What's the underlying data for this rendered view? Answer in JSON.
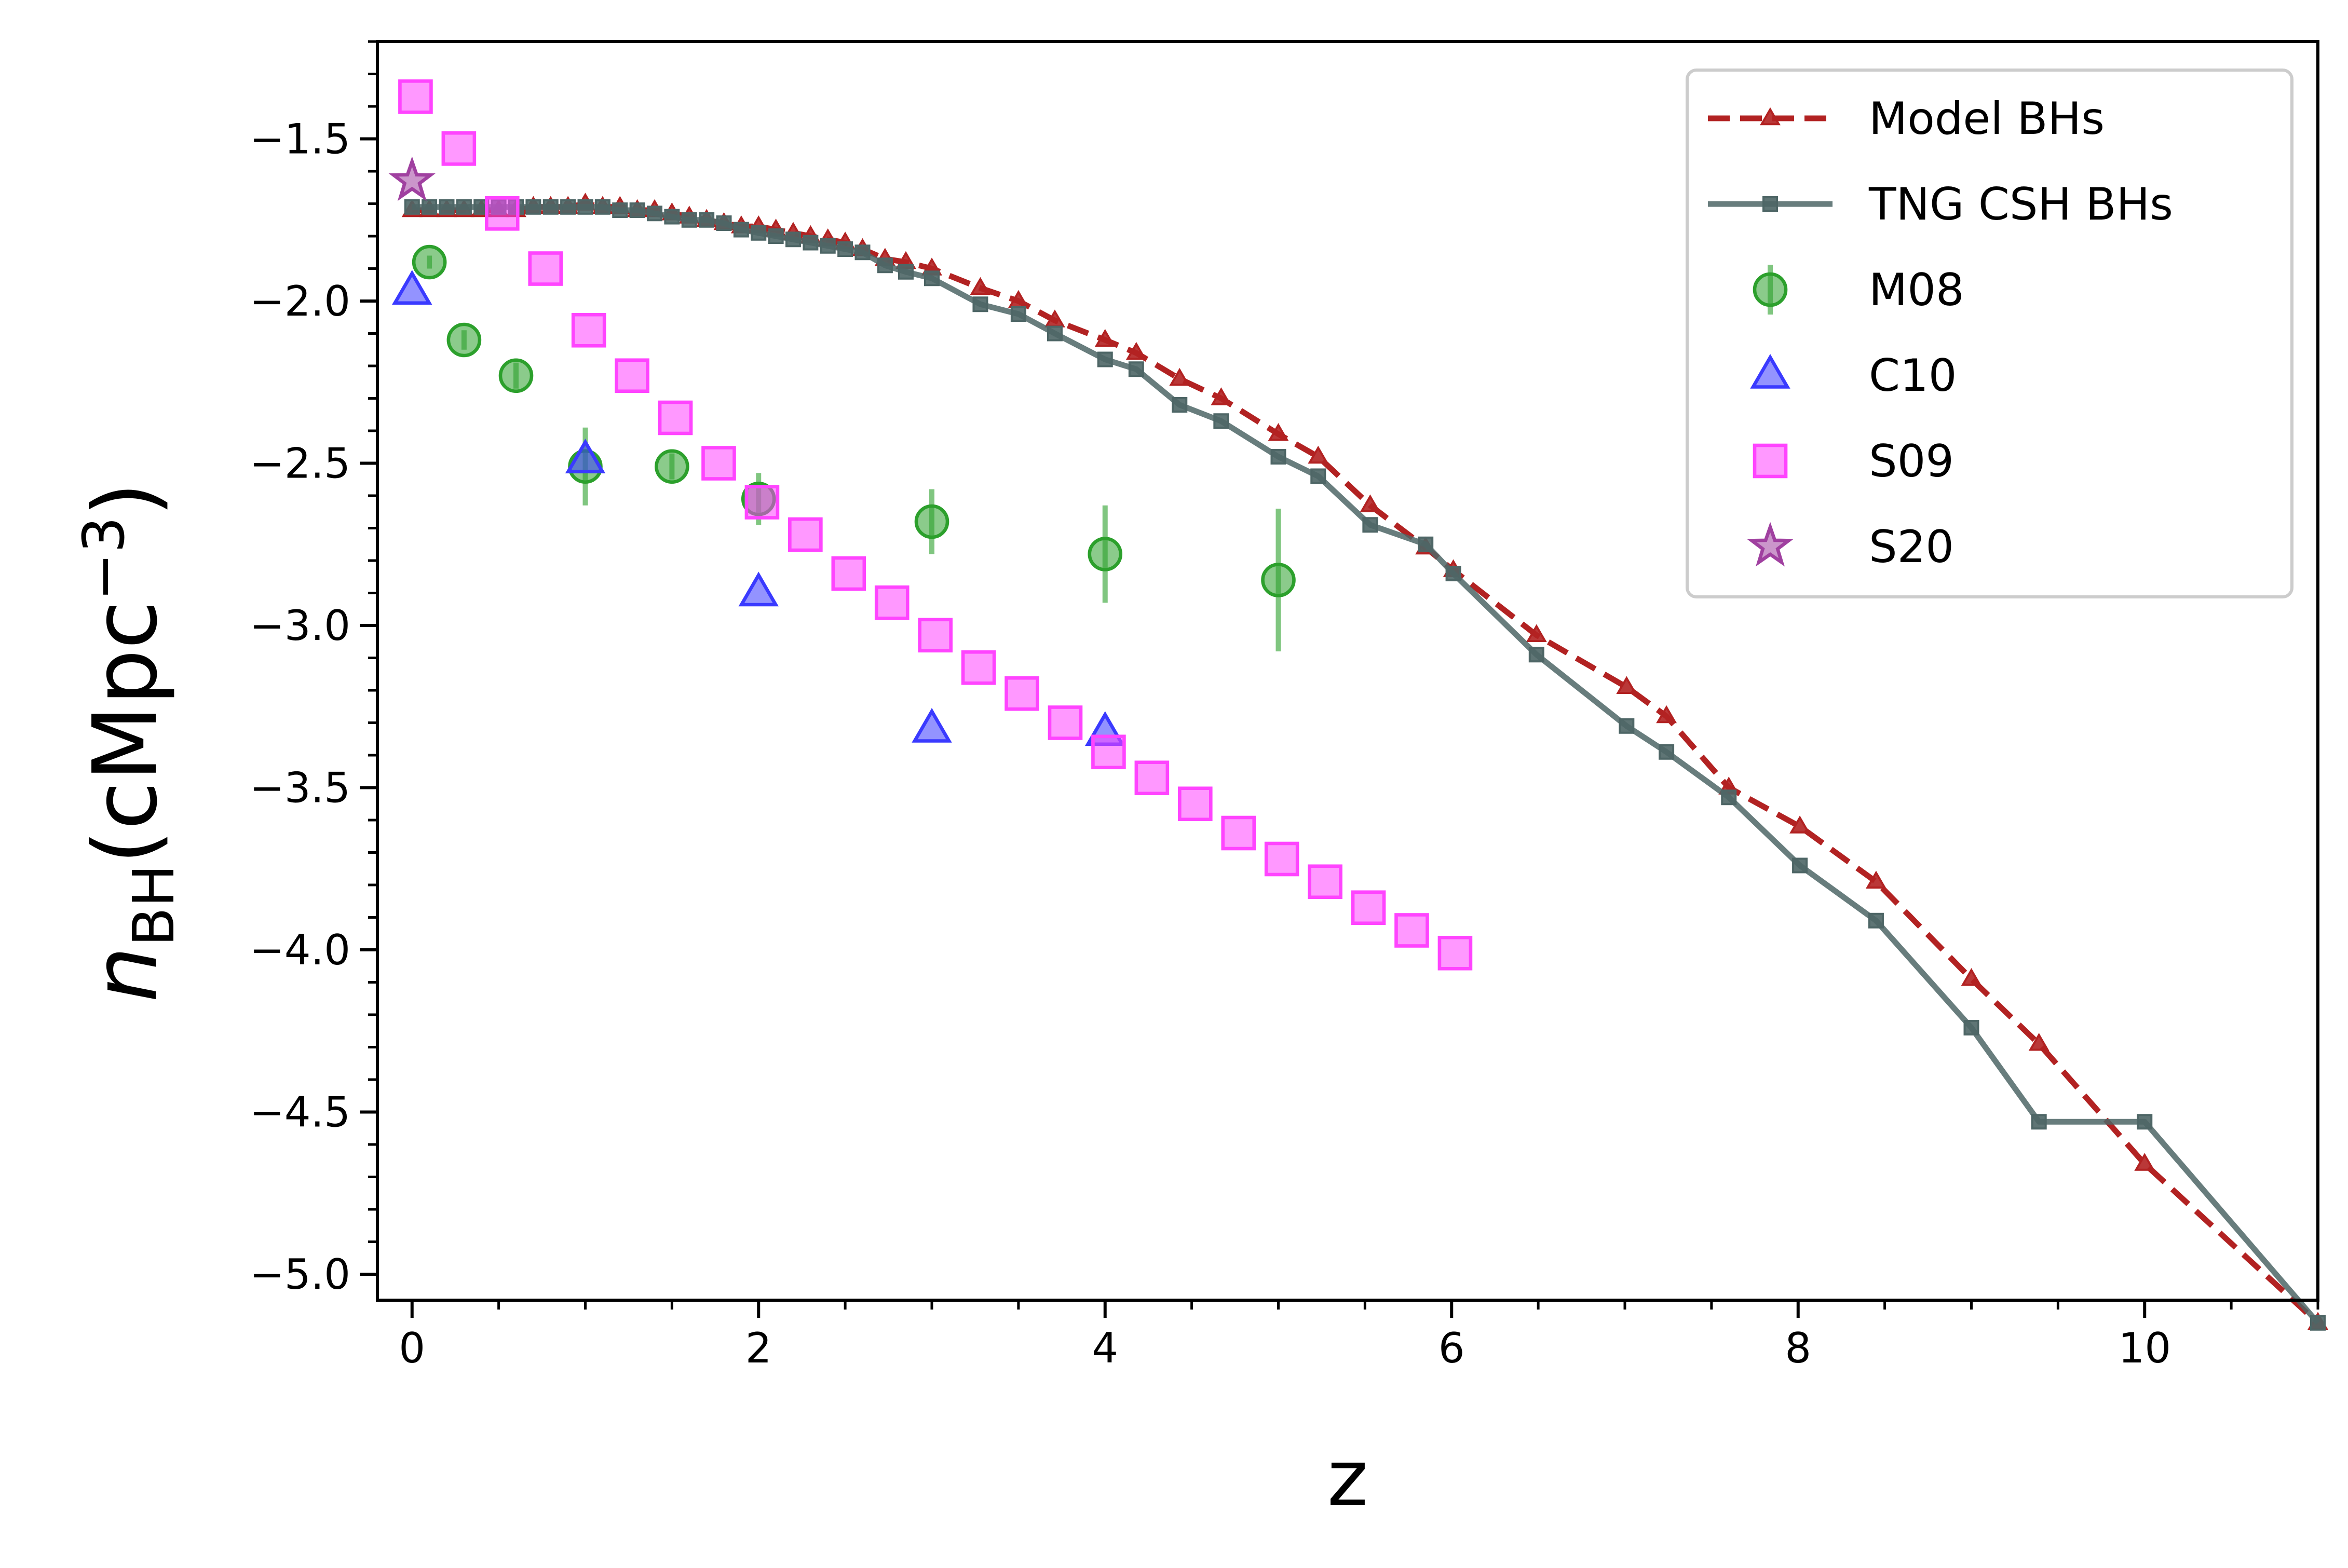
{
  "chart_data": {
    "type": "scatter",
    "xlabel": "z",
    "ylabel_main": "n",
    "ylabel_sub": "BH",
    "ylabel_units": "(cMpc",
    "ylabel_sup": "−3",
    "ylabel_close": ")",
    "xlim": [
      -0.2,
      11.0
    ],
    "ylim": [
      -5.08,
      -1.2
    ],
    "xticks": [
      0,
      2,
      4,
      6,
      8,
      10
    ],
    "xtick_labels": [
      "0",
      "2",
      "4",
      "6",
      "8",
      "10"
    ],
    "yticks": [
      -1.5,
      -2.0,
      -2.5,
      -3.0,
      -3.5,
      -4.0,
      -4.5,
      -5.0
    ],
    "ytick_labels": [
      "−1.5",
      "−2.0",
      "−2.5",
      "−3.0",
      "−3.5",
      "−4.0",
      "−4.5",
      "−5.0"
    ],
    "legend_position": "top-right",
    "series": [
      {
        "name": "Model BHs",
        "kind": "line",
        "style": "dashed",
        "marker": "triangle",
        "color": "#b22222",
        "x": [
          0.0,
          0.1,
          0.2,
          0.3,
          0.4,
          0.5,
          0.6,
          0.7,
          0.8,
          0.9,
          1.0,
          1.1,
          1.2,
          1.3,
          1.4,
          1.5,
          1.6,
          1.7,
          1.8,
          1.9,
          2.0,
          2.1,
          2.2,
          2.3,
          2.4,
          2.5,
          2.6,
          2.73,
          2.85,
          3.0,
          3.28,
          3.5,
          3.71,
          4.0,
          4.18,
          4.43,
          4.67,
          5.0,
          5.23,
          5.53,
          5.85,
          6.01,
          6.49,
          7.01,
          7.24,
          7.6,
          8.01,
          8.45,
          9.0,
          9.39,
          10.0,
          11.0
        ],
        "y": [
          -1.72,
          -1.72,
          -1.72,
          -1.72,
          -1.72,
          -1.72,
          -1.72,
          -1.71,
          -1.71,
          -1.71,
          -1.7,
          -1.71,
          -1.71,
          -1.72,
          -1.72,
          -1.73,
          -1.74,
          -1.75,
          -1.76,
          -1.77,
          -1.77,
          -1.78,
          -1.79,
          -1.8,
          -1.81,
          -1.82,
          -1.84,
          -1.87,
          -1.88,
          -1.9,
          -1.96,
          -2.0,
          -2.06,
          -2.12,
          -2.16,
          -2.24,
          -2.3,
          -2.41,
          -2.48,
          -2.63,
          -2.76,
          -2.83,
          -3.03,
          -3.19,
          -3.28,
          -3.5,
          -3.62,
          -3.79,
          -4.09,
          -4.29,
          -4.66,
          -5.15
        ]
      },
      {
        "name": "TNG CSH BHs",
        "kind": "line",
        "style": "solid",
        "marker": "square",
        "color": "#4e6666",
        "x": [
          0.0,
          0.1,
          0.2,
          0.3,
          0.4,
          0.5,
          0.6,
          0.7,
          0.8,
          0.9,
          1.0,
          1.1,
          1.2,
          1.3,
          1.4,
          1.5,
          1.6,
          1.7,
          1.8,
          1.9,
          2.0,
          2.1,
          2.2,
          2.3,
          2.4,
          2.5,
          2.6,
          2.73,
          2.85,
          3.0,
          3.28,
          3.5,
          3.71,
          4.0,
          4.18,
          4.43,
          4.67,
          5.0,
          5.23,
          5.53,
          5.85,
          6.01,
          6.49,
          7.01,
          7.24,
          7.6,
          8.01,
          8.45,
          9.0,
          9.39,
          10.0,
          11.0
        ],
        "y": [
          -1.71,
          -1.71,
          -1.71,
          -1.71,
          -1.71,
          -1.71,
          -1.71,
          -1.71,
          -1.71,
          -1.71,
          -1.71,
          -1.71,
          -1.72,
          -1.72,
          -1.73,
          -1.74,
          -1.75,
          -1.75,
          -1.76,
          -1.78,
          -1.79,
          -1.8,
          -1.81,
          -1.82,
          -1.83,
          -1.84,
          -1.85,
          -1.89,
          -1.91,
          -1.93,
          -2.01,
          -2.04,
          -2.1,
          -2.18,
          -2.21,
          -2.32,
          -2.37,
          -2.48,
          -2.54,
          -2.69,
          -2.75,
          -2.84,
          -3.09,
          -3.31,
          -3.39,
          -3.53,
          -3.74,
          -3.91,
          -4.24,
          -4.53,
          -4.53,
          -5.15
        ]
      },
      {
        "name": "M08",
        "kind": "errorbar",
        "marker": "circle",
        "color": "#2ca02c",
        "x": [
          0.1,
          0.3,
          0.6,
          1.0,
          1.5,
          2.0,
          3.0,
          4.0,
          5.0
        ],
        "y": [
          -1.88,
          -2.12,
          -2.23,
          -2.51,
          -2.51,
          -2.61,
          -2.68,
          -2.78,
          -2.86
        ],
        "yerr": [
          0.02,
          0.03,
          0.04,
          0.12,
          0.04,
          0.08,
          0.1,
          0.15,
          0.22
        ]
      },
      {
        "name": "C10",
        "kind": "scatter",
        "marker": "triangle",
        "color": "#3a3aff",
        "x": [
          0.0,
          1.0,
          2.0,
          3.0,
          4.0
        ],
        "y": [
          -1.97,
          -2.49,
          -2.9,
          -3.32,
          -3.33
        ]
      },
      {
        "name": "S09",
        "kind": "scatter",
        "marker": "square",
        "color": "#ff44ff",
        "x": [
          0.02,
          0.27,
          0.52,
          0.77,
          1.02,
          1.27,
          1.52,
          1.77,
          2.02,
          2.27,
          2.52,
          2.77,
          3.02,
          3.27,
          3.52,
          3.77,
          4.02,
          4.27,
          4.52,
          4.77,
          5.02,
          5.27,
          5.52,
          5.77,
          6.02
        ],
        "y": [
          -1.37,
          -1.53,
          -1.73,
          -1.9,
          -2.09,
          -2.23,
          -2.36,
          -2.5,
          -2.62,
          -2.72,
          -2.84,
          -2.93,
          -3.03,
          -3.13,
          -3.21,
          -3.3,
          -3.39,
          -3.47,
          -3.55,
          -3.64,
          -3.72,
          -3.79,
          -3.87,
          -3.94,
          -4.01
        ]
      },
      {
        "name": "S20",
        "kind": "scatter",
        "marker": "star",
        "color": "#a040a0",
        "x": [
          0.0
        ],
        "y": [
          -1.63
        ]
      }
    ]
  }
}
